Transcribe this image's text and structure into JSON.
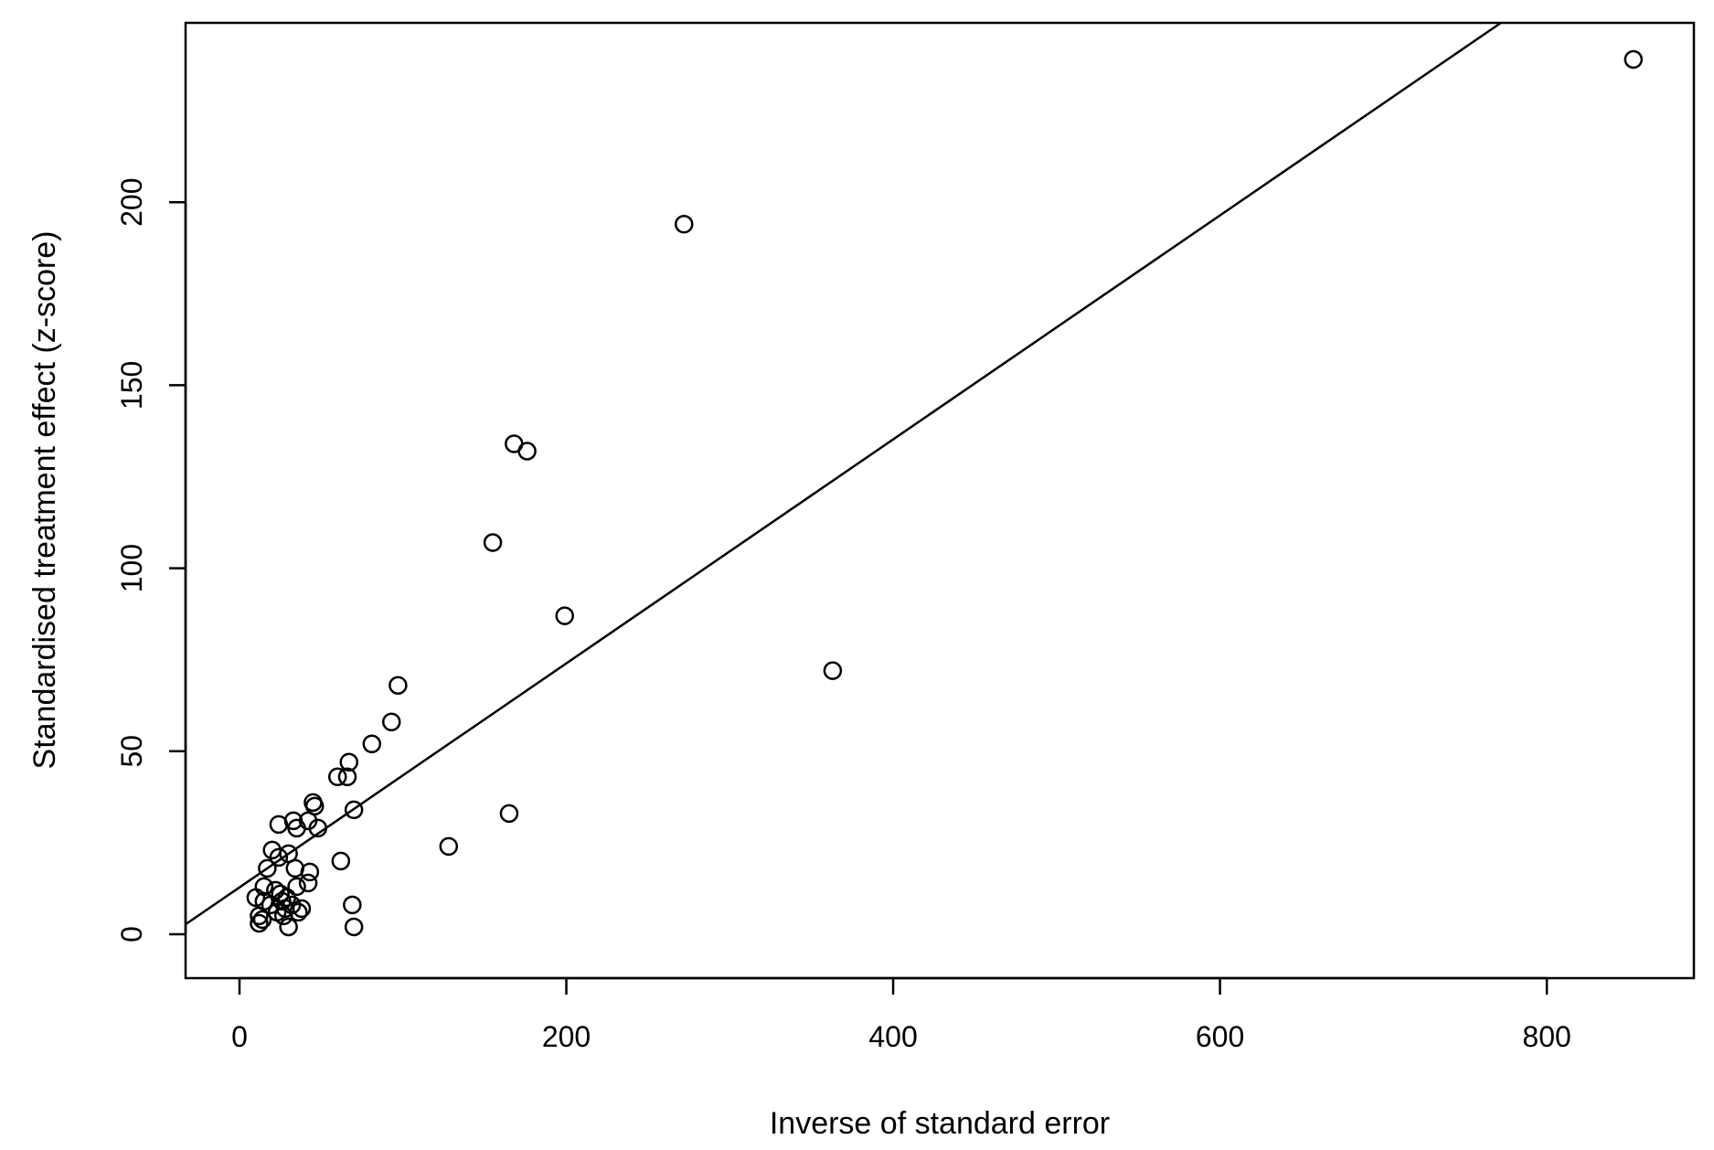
{
  "chart_data": {
    "type": "scatter",
    "title": "",
    "xlabel": "Inverse of standard error",
    "ylabel": "Standardised treatment effect (z-score)",
    "xlim": [
      -33,
      890
    ],
    "ylim": [
      -12,
      249
    ],
    "x_ticks": [
      0,
      200,
      400,
      600,
      800
    ],
    "y_ticks": [
      0,
      50,
      100,
      150,
      200
    ],
    "x_tick_labels": [
      "0",
      "200",
      "400",
      "600",
      "800"
    ],
    "y_tick_labels": [
      "0",
      "50",
      "100",
      "150",
      "200"
    ],
    "grid": false,
    "marker": "open-circle",
    "regression_line": {
      "intercept": 12.8,
      "slope": 0.306
    },
    "points": [
      {
        "x": 10,
        "y": 10
      },
      {
        "x": 12,
        "y": 5
      },
      {
        "x": 12,
        "y": 3
      },
      {
        "x": 14,
        "y": 4
      },
      {
        "x": 15,
        "y": 9
      },
      {
        "x": 15,
        "y": 13
      },
      {
        "x": 17,
        "y": 18
      },
      {
        "x": 19,
        "y": 8
      },
      {
        "x": 20,
        "y": 23
      },
      {
        "x": 22,
        "y": 12
      },
      {
        "x": 23,
        "y": 6
      },
      {
        "x": 24,
        "y": 30
      },
      {
        "x": 24,
        "y": 21
      },
      {
        "x": 25,
        "y": 11
      },
      {
        "x": 26,
        "y": 9
      },
      {
        "x": 27,
        "y": 5
      },
      {
        "x": 28,
        "y": 7
      },
      {
        "x": 29,
        "y": 10
      },
      {
        "x": 30,
        "y": 22
      },
      {
        "x": 30,
        "y": 2
      },
      {
        "x": 32,
        "y": 8
      },
      {
        "x": 33,
        "y": 31
      },
      {
        "x": 34,
        "y": 18
      },
      {
        "x": 35,
        "y": 29
      },
      {
        "x": 35,
        "y": 13
      },
      {
        "x": 36,
        "y": 6
      },
      {
        "x": 38,
        "y": 7
      },
      {
        "x": 42,
        "y": 31
      },
      {
        "x": 42,
        "y": 14
      },
      {
        "x": 43,
        "y": 17
      },
      {
        "x": 45,
        "y": 36
      },
      {
        "x": 46,
        "y": 35
      },
      {
        "x": 48,
        "y": 29
      },
      {
        "x": 60,
        "y": 43
      },
      {
        "x": 62,
        "y": 20
      },
      {
        "x": 66,
        "y": 43
      },
      {
        "x": 67,
        "y": 47
      },
      {
        "x": 69,
        "y": 8
      },
      {
        "x": 70,
        "y": 34
      },
      {
        "x": 70,
        "y": 2
      },
      {
        "x": 81,
        "y": 52
      },
      {
        "x": 93,
        "y": 58
      },
      {
        "x": 97,
        "y": 68
      },
      {
        "x": 128,
        "y": 24
      },
      {
        "x": 155,
        "y": 107
      },
      {
        "x": 165,
        "y": 33
      },
      {
        "x": 168,
        "y": 134
      },
      {
        "x": 176,
        "y": 132
      },
      {
        "x": 199,
        "y": 87
      },
      {
        "x": 272,
        "y": 194
      },
      {
        "x": 363,
        "y": 72
      },
      {
        "x": 853,
        "y": 239
      }
    ]
  }
}
